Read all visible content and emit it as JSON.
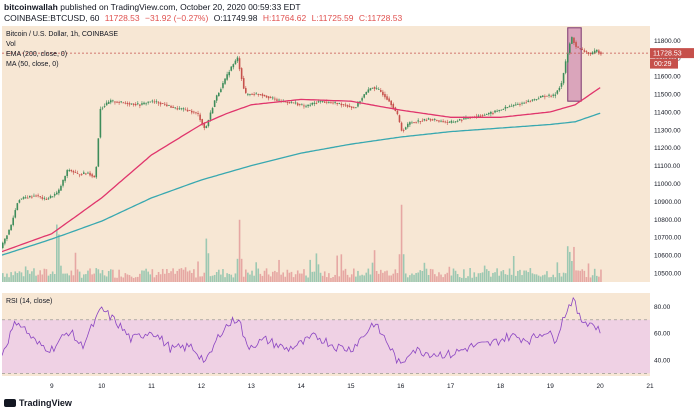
{
  "header": {
    "publisher": "bitcoinwallah",
    "published_text": "published on TradingView.com, October 20, 2020 00:59:33 EDT",
    "symbol_line": "COINBASE:BTCUSD, 60",
    "last": "11728.53",
    "change": "−31.92 (−0.27%)",
    "open": "O:11749.98",
    "high": "H:11764.62",
    "low": "L:11725.59",
    "close": "C:11728.53"
  },
  "legend": {
    "title": "Bitcoin / U.S. Dollar, 1h, COINBASE",
    "vol": "Vol",
    "ema": "EMA (200, close, 0)",
    "ma": "MA (50, close, 0)",
    "rsi": "RSI (14, close)"
  },
  "price_tag": "11728.53",
  "countdown_tag": "00:29",
  "footer": {
    "brand": "TradingView"
  },
  "colors": {
    "background": "#f7e7d4",
    "up": "#3d8c5a",
    "down": "#c6504b",
    "vol_up": "#9cc8b2",
    "vol_down": "#e6a7a3",
    "ema": "#38a8b0",
    "ma": "#e0356c",
    "rsi_line": "#8b45c2",
    "rsi_band": "#efd1e4",
    "highlight": "#b5549e",
    "tag_bg": "#c6504b"
  },
  "chart_data": [
    {
      "type": "candlestick",
      "title": "Bitcoin / U.S. Dollar, 1h, COINBASE",
      "x_tick_labels": [
        "9",
        "10",
        "11",
        "12",
        "13",
        "14",
        "15",
        "16",
        "17",
        "18",
        "19",
        "20",
        "21"
      ],
      "y_tick_labels": [
        "11800.00",
        "11700.00",
        "11600.00",
        "11500.00",
        "11400.00",
        "11300.00",
        "11200.00",
        "11100.00",
        "11000.00",
        "10900.00",
        "10800.00",
        "10700.00",
        "10600.00",
        "10500.00"
      ],
      "ylim": [
        10450,
        11880
      ],
      "x_range_days": [
        8.0,
        21.0
      ],
      "close_anchors": [
        [
          8.0,
          10640
        ],
        [
          8.2,
          10760
        ],
        [
          8.35,
          10910
        ],
        [
          8.7,
          10935
        ],
        [
          8.9,
          10910
        ],
        [
          9.15,
          10950
        ],
        [
          9.35,
          11080
        ],
        [
          9.55,
          11050
        ],
        [
          9.75,
          11060
        ],
        [
          9.9,
          11030
        ],
        [
          10.0,
          11420
        ],
        [
          10.2,
          11460
        ],
        [
          10.5,
          11450
        ],
        [
          10.8,
          11440
        ],
        [
          11.0,
          11460
        ],
        [
          11.2,
          11450
        ],
        [
          11.5,
          11420
        ],
        [
          11.75,
          11410
        ],
        [
          11.95,
          11390
        ],
        [
          12.1,
          11300
        ],
        [
          12.3,
          11470
        ],
        [
          12.5,
          11580
        ],
        [
          12.6,
          11640
        ],
        [
          12.75,
          11700
        ],
        [
          12.9,
          11500
        ],
        [
          13.2,
          11500
        ],
        [
          13.6,
          11460
        ],
        [
          13.9,
          11450
        ],
        [
          14.1,
          11430
        ],
        [
          14.4,
          11460
        ],
        [
          14.7,
          11450
        ],
        [
          14.9,
          11440
        ],
        [
          15.1,
          11420
        ],
        [
          15.3,
          11500
        ],
        [
          15.45,
          11540
        ],
        [
          15.6,
          11520
        ],
        [
          15.8,
          11460
        ],
        [
          15.95,
          11390
        ],
        [
          16.05,
          11290
        ],
        [
          16.2,
          11340
        ],
        [
          16.6,
          11360
        ],
        [
          17.0,
          11340
        ],
        [
          17.4,
          11370
        ],
        [
          17.8,
          11390
        ],
        [
          18.2,
          11430
        ],
        [
          18.6,
          11460
        ],
        [
          18.9,
          11490
        ],
        [
          19.1,
          11490
        ],
        [
          19.25,
          11560
        ],
        [
          19.35,
          11700
        ],
        [
          19.45,
          11820
        ],
        [
          19.55,
          11760
        ],
        [
          19.7,
          11740
        ],
        [
          19.85,
          11720
        ],
        [
          19.95,
          11745
        ],
        [
          20.02,
          11728.53
        ]
      ],
      "ema200_anchors": [
        [
          8.0,
          10600
        ],
        [
          9.0,
          10690
        ],
        [
          10.0,
          10790
        ],
        [
          11.0,
          10920
        ],
        [
          12.0,
          11020
        ],
        [
          13.0,
          11100
        ],
        [
          14.0,
          11170
        ],
        [
          15.0,
          11220
        ],
        [
          16.0,
          11260
        ],
        [
          17.0,
          11290
        ],
        [
          18.0,
          11310
        ],
        [
          19.0,
          11330
        ],
        [
          19.5,
          11345
        ],
        [
          20.02,
          11395
        ]
      ],
      "ma50_anchors": [
        [
          8.0,
          10620
        ],
        [
          9.0,
          10720
        ],
        [
          10.0,
          10920
        ],
        [
          11.0,
          11160
        ],
        [
          12.0,
          11330
        ],
        [
          12.5,
          11390
        ],
        [
          13.0,
          11440
        ],
        [
          14.0,
          11470
        ],
        [
          15.0,
          11460
        ],
        [
          16.0,
          11410
        ],
        [
          17.0,
          11370
        ],
        [
          18.0,
          11370
        ],
        [
          19.0,
          11400
        ],
        [
          19.5,
          11440
        ],
        [
          20.02,
          11540
        ]
      ],
      "ema_last": 11395,
      "ma_last": 11540,
      "last_price": 11728.53,
      "highlight_range": {
        "x": [
          19.35,
          19.62
        ],
        "y": [
          11460,
          11870
        ]
      }
    },
    {
      "type": "line",
      "title": "RSI (14, close)",
      "y_tick_labels": [
        "80.00",
        "60.00",
        "40.00"
      ],
      "ylim": [
        28,
        90
      ],
      "band": [
        30,
        70
      ],
      "rsi_anchors": [
        [
          8.0,
          45
        ],
        [
          8.3,
          70
        ],
        [
          8.7,
          52
        ],
        [
          9.0,
          48
        ],
        [
          9.35,
          62
        ],
        [
          9.6,
          50
        ],
        [
          10.0,
          78
        ],
        [
          10.3,
          68
        ],
        [
          10.6,
          55
        ],
        [
          11.0,
          62
        ],
        [
          11.4,
          48
        ],
        [
          11.8,
          50
        ],
        [
          12.1,
          38
        ],
        [
          12.4,
          62
        ],
        [
          12.6,
          68
        ],
        [
          12.75,
          72
        ],
        [
          12.9,
          50
        ],
        [
          13.3,
          55
        ],
        [
          13.7,
          48
        ],
        [
          14.0,
          52
        ],
        [
          14.3,
          58
        ],
        [
          14.7,
          50
        ],
        [
          15.0,
          48
        ],
        [
          15.3,
          60
        ],
        [
          15.45,
          68
        ],
        [
          15.7,
          55
        ],
        [
          16.0,
          35
        ],
        [
          16.2,
          48
        ],
        [
          16.6,
          45
        ],
        [
          17.0,
          44
        ],
        [
          17.4,
          50
        ],
        [
          17.8,
          52
        ],
        [
          18.2,
          58
        ],
        [
          18.6,
          55
        ],
        [
          18.9,
          62
        ],
        [
          19.1,
          55
        ],
        [
          19.3,
          75
        ],
        [
          19.45,
          86
        ],
        [
          19.6,
          70
        ],
        [
          19.8,
          68
        ],
        [
          20.02,
          62
        ]
      ]
    },
    {
      "type": "bar",
      "title": "Vol",
      "note": "relative hourly volume shown as bars under the price",
      "peaks": [
        [
          9.1,
          0.95
        ],
        [
          12.1,
          0.52
        ],
        [
          12.75,
          0.75
        ],
        [
          14.3,
          0.35
        ],
        [
          15.45,
          0.4
        ],
        [
          16.0,
          0.95
        ],
        [
          19.35,
          0.55
        ],
        [
          19.45,
          0.45
        ]
      ]
    }
  ]
}
